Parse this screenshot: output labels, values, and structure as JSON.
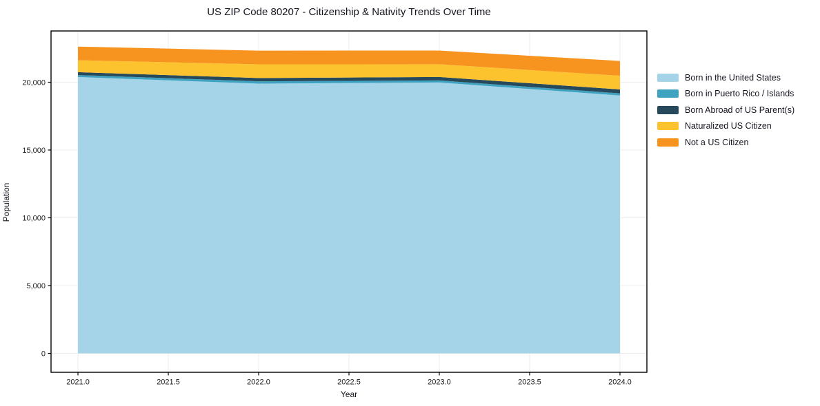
{
  "chart": {
    "title": "US ZIP Code 80207 - Citizenship & Nativity Trends Over Time",
    "xlabel": "Year",
    "ylabel": "Population"
  },
  "chart_data": {
    "type": "area",
    "stacked": true,
    "title": "US ZIP Code 80207 - Citizenship & Nativity Trends Over Time",
    "xlabel": "Year",
    "ylabel": "Population",
    "x": [
      2021,
      2022,
      2023,
      2024
    ],
    "series": [
      {
        "name": "Born in the United States",
        "color": "#a5d3e8",
        "values": [
          20380,
          19900,
          19980,
          19020
        ]
      },
      {
        "name": "Born in Puerto Rico / Islands",
        "color": "#3fa2c1",
        "values": [
          150,
          170,
          155,
          160
        ]
      },
      {
        "name": "Born Abroad of US Parent(s)",
        "color": "#27495c",
        "values": [
          210,
          240,
          250,
          290
        ]
      },
      {
        "name": "Naturalized US Citizen",
        "color": "#fdc32f",
        "values": [
          880,
          1010,
          940,
          1010
        ]
      },
      {
        "name": "Not a US Citizen",
        "color": "#f7941f",
        "values": [
          1010,
          1010,
          1010,
          1090
        ]
      }
    ],
    "xlim": [
      2020.851,
      2024.149
    ],
    "ylim": [
      -1396,
      23782
    ],
    "x_ticks": [
      2021.0,
      2021.5,
      2022.0,
      2022.5,
      2023.0,
      2023.5,
      2024.0
    ],
    "x_tick_labels": [
      "2021.0",
      "2021.5",
      "2022.0",
      "2022.5",
      "2023.0",
      "2023.5",
      "2024.0"
    ],
    "y_ticks": [
      0,
      5000,
      10000,
      15000,
      20000
    ],
    "y_tick_labels": [
      "0",
      "5,000",
      "10,000",
      "15,000",
      "20,000"
    ],
    "grid": true,
    "grid_color": "#ececec",
    "frame_color": "#000000",
    "tick_label_color": "#1a1a1a",
    "legend_position": "right"
  }
}
